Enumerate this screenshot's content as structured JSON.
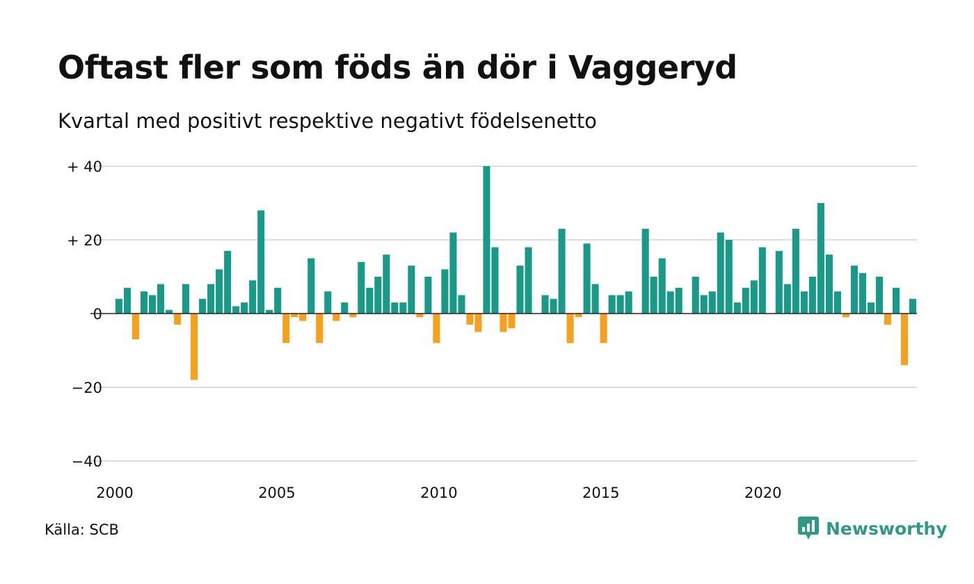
{
  "header": {
    "title": "Oftast fler som föds än dör i Vaggeryd",
    "subtitle": "Kvartal med positivt respektive negativt födelsenetto"
  },
  "footer": {
    "source": "Källa: SCB",
    "brand": "Newsworthy",
    "brand_icon": "bar-chart-speech-bubble-icon"
  },
  "colors": {
    "positive": "#1a9988",
    "negative": "#f5a01e",
    "grid": "#dddddd",
    "zero_line": "#222222",
    "brand": "#2f9985"
  },
  "chart_data": {
    "type": "bar",
    "title": "Oftast fler som föds än dör i Vaggeryd",
    "subtitle": "Kvartal med positivt respektive negativt födelsenetto",
    "xlabel": "",
    "ylabel": "",
    "x_start_year": 2000,
    "periods_per_year": 4,
    "ylim": [
      -40,
      40
    ],
    "xlim": [
      2000,
      2024.75
    ],
    "yticks": [
      {
        "value": 40,
        "label": "+ 40"
      },
      {
        "value": 20,
        "label": "+ 20"
      },
      {
        "value": 0,
        "label": "0"
      },
      {
        "value": -20,
        "label": "−20"
      },
      {
        "value": -40,
        "label": "−40"
      }
    ],
    "xticks": [
      {
        "value": 2000,
        "label": "2000"
      },
      {
        "value": 2005,
        "label": "2005"
      },
      {
        "value": 2010,
        "label": "2010"
      },
      {
        "value": 2015,
        "label": "2015"
      },
      {
        "value": 2020,
        "label": "2020"
      }
    ],
    "grid": true,
    "legend": "none",
    "values": [
      4,
      7,
      -7,
      6,
      5,
      8,
      1,
      -3,
      8,
      -18,
      4,
      8,
      12,
      17,
      2,
      3,
      9,
      28,
      1,
      7,
      -8,
      -1,
      -2,
      15,
      -8,
      6,
      -2,
      3,
      -1,
      14,
      7,
      10,
      16,
      3,
      3,
      13,
      -1,
      10,
      -8,
      12,
      22,
      5,
      -3,
      -5,
      40,
      18,
      -5,
      -4,
      13,
      18,
      0,
      5,
      4,
      23,
      -8,
      -1,
      19,
      8,
      -8,
      5,
      5,
      6,
      0,
      23,
      10,
      15,
      6,
      7,
      0,
      10,
      5,
      6,
      22,
      20,
      3,
      7,
      9,
      18,
      0,
      17,
      8,
      23,
      6,
      10,
      30,
      16,
      6,
      -1,
      13,
      11,
      3,
      10,
      -3,
      7,
      -14,
      4
    ]
  }
}
